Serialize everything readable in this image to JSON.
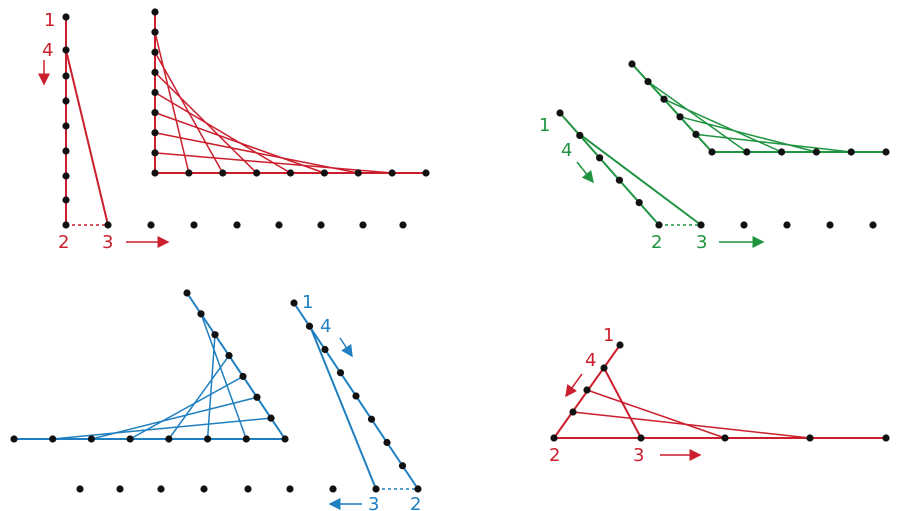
{
  "colors": {
    "red": "#cc1f2d",
    "green": "#1f9440",
    "blue": "#1f7fc0",
    "dot": "#111111"
  },
  "panels": [
    {
      "id": "red-square",
      "color_key": "red",
      "steps": [
        {
          "label": "1"
        },
        {
          "label": "4"
        },
        {
          "label": "2"
        },
        {
          "label": "3"
        }
      ]
    },
    {
      "id": "green-slanted",
      "color_key": "green",
      "steps": [
        {
          "label": "1"
        },
        {
          "label": "4"
        },
        {
          "label": "2"
        },
        {
          "label": "3"
        }
      ]
    },
    {
      "id": "blue-slanted",
      "color_key": "blue",
      "steps": [
        {
          "label": "1"
        },
        {
          "label": "4"
        },
        {
          "label": "3"
        },
        {
          "label": "2"
        }
      ]
    },
    {
      "id": "red-triangle",
      "color_key": "red",
      "steps": [
        {
          "label": "1"
        },
        {
          "label": "4"
        },
        {
          "label": "2"
        },
        {
          "label": "3"
        }
      ]
    }
  ]
}
